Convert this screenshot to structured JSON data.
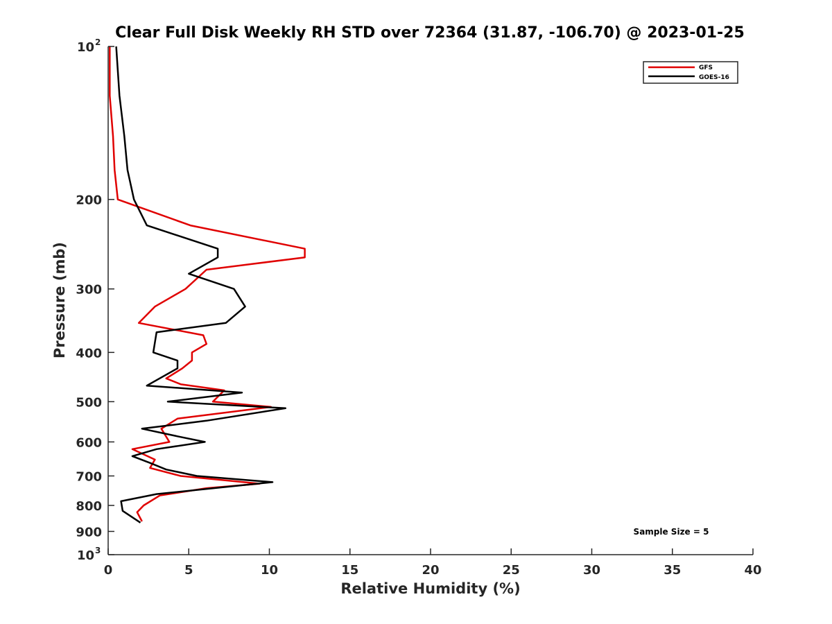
{
  "chart_data": {
    "type": "line",
    "title": "Clear Full Disk Weekly RH STD over 72364 (31.87, -106.70) @ 2023-01-25",
    "xlabel": "Relative Humidity (%)",
    "ylabel": "Pressure (mb)",
    "xlim": [
      0,
      40
    ],
    "ylim": [
      100,
      1000
    ],
    "y_scale": "log",
    "y_reversed": true,
    "x_ticks": [
      "0",
      "5",
      "10",
      "15",
      "20",
      "25",
      "30",
      "35",
      "40"
    ],
    "y_ticks": [
      {
        "value": 100,
        "base": "10",
        "exp": "2"
      },
      {
        "value": 200,
        "label": "200"
      },
      {
        "value": 300,
        "label": "300"
      },
      {
        "value": 400,
        "label": "400"
      },
      {
        "value": 500,
        "label": "500"
      },
      {
        "value": 600,
        "label": "600"
      },
      {
        "value": 700,
        "label": "700"
      },
      {
        "value": 800,
        "label": "800"
      },
      {
        "value": 900,
        "label": "900"
      },
      {
        "value": 1000,
        "base": "10",
        "exp": "3"
      }
    ],
    "grid": false,
    "legend_position": "top-right",
    "series": [
      {
        "name": "GFS",
        "color": "#e00000",
        "points": [
          [
            0.1,
            100
          ],
          [
            0.1,
            125
          ],
          [
            0.3,
            150
          ],
          [
            0.4,
            175
          ],
          [
            0.6,
            200
          ],
          [
            5.1,
            225
          ],
          [
            12.2,
            250
          ],
          [
            12.2,
            260
          ],
          [
            6.1,
            275
          ],
          [
            4.8,
            300
          ],
          [
            2.9,
            325
          ],
          [
            1.9,
            350
          ],
          [
            5.9,
            370
          ],
          [
            6.1,
            385
          ],
          [
            5.2,
            400
          ],
          [
            5.2,
            415
          ],
          [
            4.6,
            430
          ],
          [
            3.6,
            450
          ],
          [
            4.5,
            462
          ],
          [
            7.2,
            475
          ],
          [
            6.5,
            500
          ],
          [
            10.1,
            512
          ],
          [
            4.3,
            540
          ],
          [
            3.3,
            565
          ],
          [
            3.8,
            600
          ],
          [
            1.5,
            620
          ],
          [
            2.9,
            650
          ],
          [
            2.6,
            675
          ],
          [
            4.5,
            700
          ],
          [
            9.4,
            725
          ],
          [
            6.1,
            740
          ],
          [
            3.2,
            765
          ],
          [
            2.2,
            800
          ],
          [
            1.8,
            825
          ],
          [
            2.1,
            860
          ]
        ]
      },
      {
        "name": "GOES-16",
        "color": "#000000",
        "points": [
          [
            0.5,
            100
          ],
          [
            0.7,
            125
          ],
          [
            1.0,
            150
          ],
          [
            1.2,
            175
          ],
          [
            1.6,
            200
          ],
          [
            2.4,
            225
          ],
          [
            6.8,
            250
          ],
          [
            6.8,
            260
          ],
          [
            5.0,
            280
          ],
          [
            7.8,
            300
          ],
          [
            8.5,
            325
          ],
          [
            7.3,
            350
          ],
          [
            3.0,
            365
          ],
          [
            2.8,
            400
          ],
          [
            4.3,
            415
          ],
          [
            4.3,
            430
          ],
          [
            2.4,
            465
          ],
          [
            8.3,
            480
          ],
          [
            3.7,
            500
          ],
          [
            11.0,
            515
          ],
          [
            6.1,
            545
          ],
          [
            2.1,
            565
          ],
          [
            4.3,
            585
          ],
          [
            6.0,
            600
          ],
          [
            3.0,
            620
          ],
          [
            1.5,
            640
          ],
          [
            2.6,
            660
          ],
          [
            3.6,
            680
          ],
          [
            5.5,
            700
          ],
          [
            10.2,
            720
          ],
          [
            3.0,
            760
          ],
          [
            0.8,
            785
          ],
          [
            0.9,
            820
          ],
          [
            2.0,
            865
          ]
        ]
      }
    ],
    "annotations": [
      "Sample Size = 5"
    ]
  }
}
